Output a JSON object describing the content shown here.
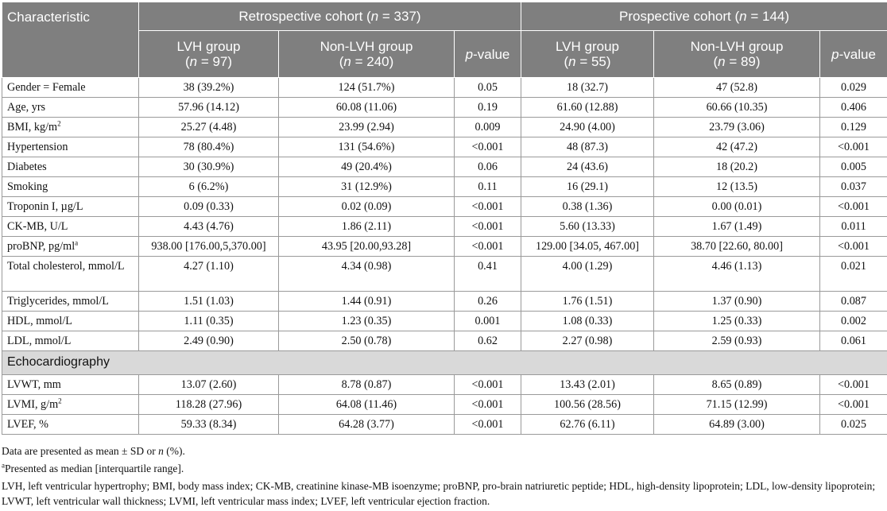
{
  "header": {
    "characteristic": "Characteristic",
    "retro_pre": "Retrospective cohort (",
    "retro_n": "n",
    "retro_post": " = 337)",
    "pro_pre": "Prospective cohort (",
    "pro_n": "n",
    "pro_post": " = 144)",
    "lvh_group": "LVH group",
    "nonlvh_group": "Non-LVH group",
    "p_italic": "p",
    "p_rest": "-value",
    "n": "n",
    "retro_lvh_n": " = 97)",
    "retro_non_n": " = 240)",
    "pro_lvh_n": " = 55)",
    "pro_non_n": " = 89)",
    "open_paren": "("
  },
  "rows": [
    {
      "label": "Gender = Female",
      "v": [
        "38 (39.2%)",
        "124 (51.7%)",
        "0.05",
        "18 (32.7)",
        "47 (52.8)",
        "0.029"
      ]
    },
    {
      "label": "Age, yrs",
      "v": [
        "57.96 (14.12)",
        "60.08 (11.06)",
        "0.19",
        "61.60 (12.88)",
        "60.66 (10.35)",
        "0.406"
      ]
    },
    {
      "label": "BMI, kg/m",
      "sup": "2",
      "v": [
        "25.27 (4.48)",
        "23.99 (2.94)",
        "0.009",
        "24.90 (4.00)",
        "23.79 (3.06)",
        "0.129"
      ]
    },
    {
      "label": "Hypertension",
      "v": [
        "78 (80.4%)",
        "131 (54.6%)",
        "<0.001",
        "48 (87.3)",
        "42 (47.2)",
        "<0.001"
      ]
    },
    {
      "label": "Diabetes",
      "v": [
        "30 (30.9%)",
        "49 (20.4%)",
        "0.06",
        "24 (43.6)",
        "18 (20.2)",
        "0.005"
      ]
    },
    {
      "label": "Smoking",
      "v": [
        "6 (6.2%)",
        "31 (12.9%)",
        "0.11",
        "16 (29.1)",
        "12 (13.5)",
        "0.037"
      ]
    },
    {
      "label": "Troponin I, µg/L",
      "v": [
        "0.09 (0.33)",
        "0.02 (0.09)",
        "<0.001",
        "0.38 (1.36)",
        "0.00 (0.01)",
        "<0.001"
      ]
    },
    {
      "label": "CK-MB, U/L",
      "v": [
        "4.43 (4.76)",
        "1.86 (2.11)",
        "<0.001",
        "5.60 (13.33)",
        "1.67 (1.49)",
        "0.011"
      ]
    },
    {
      "label": "proBNP, pg/ml",
      "sup": "a",
      "v": [
        "938.00 [176.00,5,370.00]",
        "43.95 [20.00,93.28]",
        "<0.001",
        "129.00 [34.05, 467.00]",
        "38.70 [22.60, 80.00]",
        "<0.001"
      ]
    },
    {
      "label": "Total cholesterol, mmol/L",
      "v": [
        "4.27 (1.10)",
        "4.34 (0.98)",
        "0.41",
        "4.00 (1.29)",
        "4.46 (1.13)",
        "0.021"
      ]
    },
    {
      "label": "Triglycerides, mmol/L",
      "v": [
        "1.51 (1.03)",
        "1.44 (0.91)",
        "0.26",
        "1.76 (1.51)",
        "1.37 (0.90)",
        "0.087"
      ]
    },
    {
      "label": "HDL, mmol/L",
      "v": [
        "1.11 (0.35)",
        "1.23 (0.35)",
        "0.001",
        "1.08 (0.33)",
        "1.25 (0.33)",
        "0.002"
      ]
    },
    {
      "label": "LDL, mmol/L",
      "v": [
        "2.49 (0.90)",
        "2.50 (0.78)",
        "0.62",
        "2.27 (0.98)",
        "2.59 (0.93)",
        "0.061"
      ]
    }
  ],
  "section": "Echocardiography",
  "echo_rows": [
    {
      "label": "LVWT, mm",
      "v": [
        "13.07 (2.60)",
        "8.78 (0.87)",
        "<0.001",
        "13.43 (2.01)",
        "8.65 (0.89)",
        "<0.001"
      ]
    },
    {
      "label": "LVMI, g/m",
      "sup": "2",
      "v": [
        "118.28 (27.96)",
        "64.08 (11.46)",
        "<0.001",
        "100.56 (28.56)",
        "71.15 (12.99)",
        "<0.001"
      ]
    },
    {
      "label": "LVEF, %",
      "v": [
        "59.33 (8.34)",
        "64.28 (3.77)",
        "<0.001",
        "62.76 (6.11)",
        "64.89 (3.00)",
        "0.025"
      ]
    }
  ],
  "notes": {
    "n1_pre": "Data are presented as mean ± SD or ",
    "n1_n": "n",
    "n1_post": " (%).",
    "n2_sup": "a",
    "n2": "Presented as median [interquartile range].",
    "n3": "LVH, left ventricular hypertrophy; BMI, body mass index; CK-MB, creatinine kinase-MB isoenzyme; proBNP, pro-brain natriuretic peptide; HDL, high-density lipoprotein; LDL, low-density lipoprotein; LVWT, left ventricular wall thickness; LVMI, left ventricular mass index; LVEF, left ventricular ejection fraction."
  }
}
